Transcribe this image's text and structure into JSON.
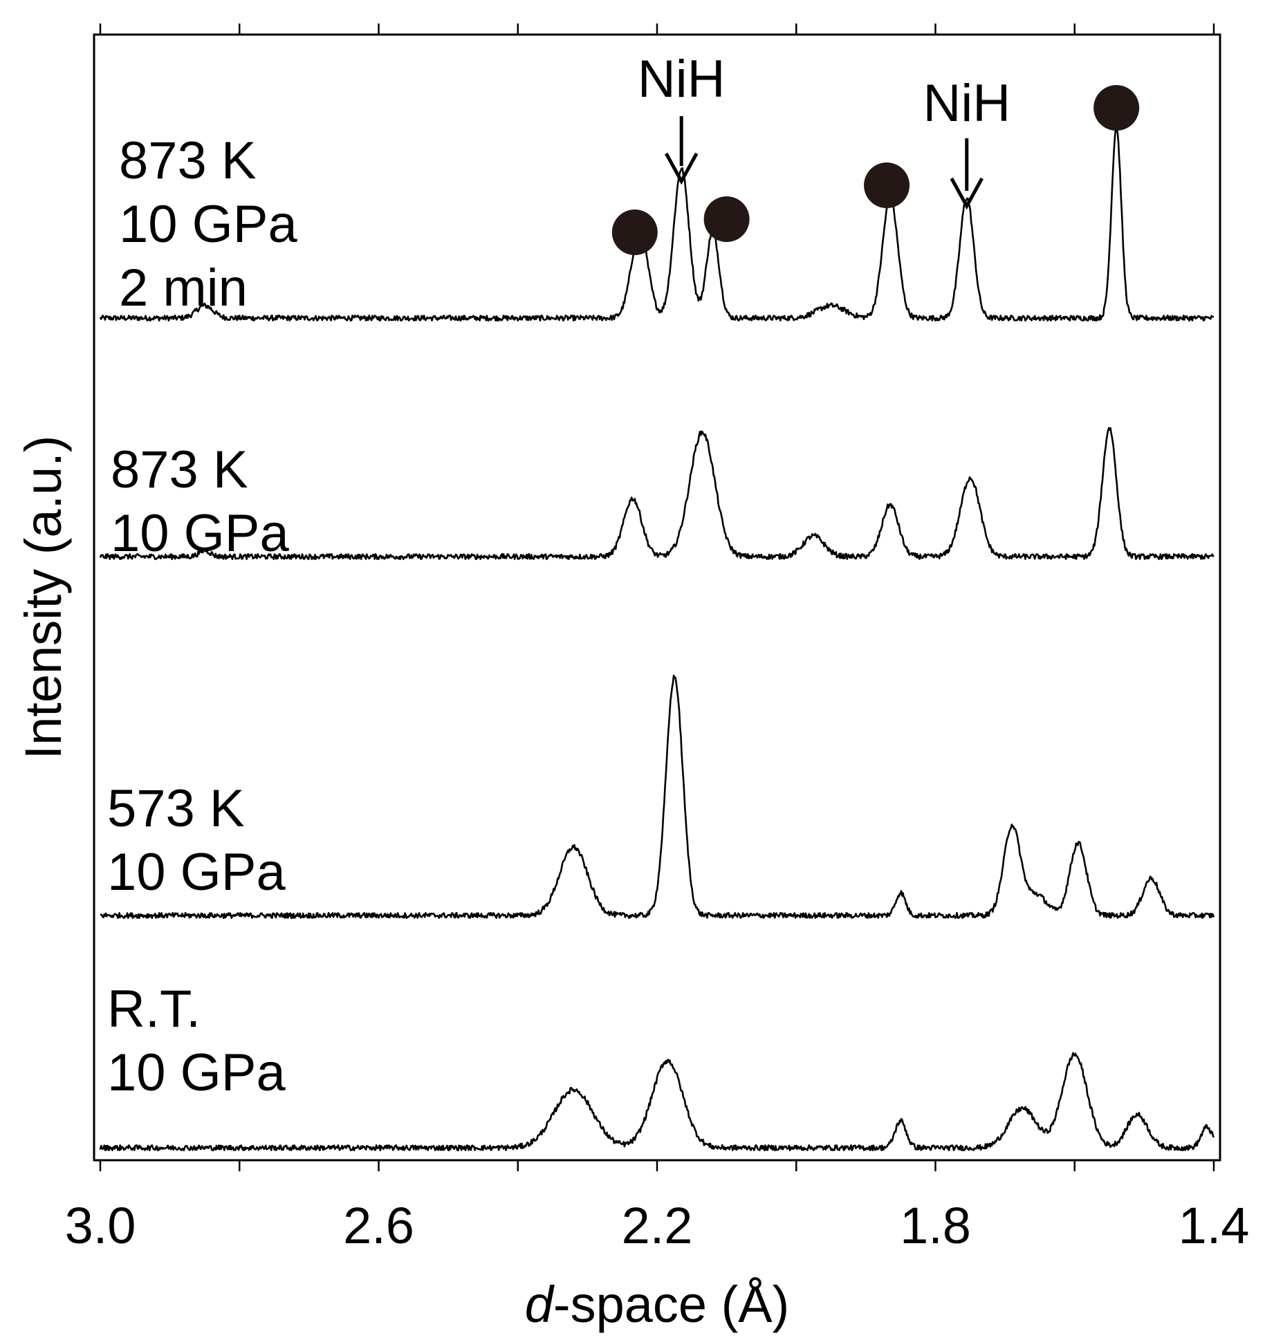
{
  "chart_data": {
    "type": "line",
    "title": "",
    "xlabel_italic": "d",
    "xlabel_rest": "-space (Å)",
    "ylabel": "Intensity (a.u.)",
    "xlim": [
      3.0,
      1.4
    ],
    "x_reversed": true,
    "xticks": [
      3.0,
      2.6,
      2.2,
      1.8,
      1.4
    ],
    "xtick_labels": [
      "3.0",
      "2.6",
      "2.2",
      "1.8",
      "1.4"
    ],
    "minor_xticks": [
      3.0,
      2.8,
      2.6,
      2.4,
      2.2,
      2.0,
      1.8,
      1.6,
      1.4
    ],
    "yticks_shown": false,
    "grid": false,
    "line_color": "#000000",
    "marker_color": "#231815",
    "series": [
      {
        "name_lines": [
          "873 K",
          "10 GPa",
          "2 min"
        ],
        "baseline": 4.0,
        "peaks": [
          {
            "d": 2.85,
            "h": 0.06,
            "w": 0.012
          },
          {
            "d": 2.225,
            "h": 0.42,
            "w": 0.012
          },
          {
            "d": 2.165,
            "h": 0.72,
            "w": 0.011
          },
          {
            "d": 2.12,
            "h": 0.42,
            "w": 0.009
          },
          {
            "d": 1.95,
            "h": 0.06,
            "w": 0.02
          },
          {
            "d": 1.865,
            "h": 0.58,
            "w": 0.011
          },
          {
            "d": 1.755,
            "h": 0.58,
            "w": 0.01
          },
          {
            "d": 1.54,
            "h": 0.92,
            "w": 0.007
          }
        ]
      },
      {
        "name_lines": [
          "873 K",
          "10 GPa"
        ],
        "baseline": 2.85,
        "peaks": [
          {
            "d": 2.85,
            "h": 0.03,
            "w": 0.008
          },
          {
            "d": 2.235,
            "h": 0.28,
            "w": 0.013
          },
          {
            "d": 2.135,
            "h": 0.6,
            "w": 0.018
          },
          {
            "d": 1.975,
            "h": 0.1,
            "w": 0.015
          },
          {
            "d": 1.865,
            "h": 0.25,
            "w": 0.012
          },
          {
            "d": 1.75,
            "h": 0.38,
            "w": 0.014
          },
          {
            "d": 1.55,
            "h": 0.62,
            "w": 0.01
          }
        ]
      },
      {
        "name_lines": [
          "573 K",
          "10 GPa"
        ],
        "baseline": 1.12,
        "peaks": [
          {
            "d": 2.32,
            "h": 0.33,
            "w": 0.02
          },
          {
            "d": 2.175,
            "h": 1.15,
            "w": 0.012
          },
          {
            "d": 1.85,
            "h": 0.11,
            "w": 0.007
          },
          {
            "d": 1.69,
            "h": 0.43,
            "w": 0.012
          },
          {
            "d": 1.655,
            "h": 0.1,
            "w": 0.015
          },
          {
            "d": 1.595,
            "h": 0.35,
            "w": 0.012
          },
          {
            "d": 1.49,
            "h": 0.18,
            "w": 0.012
          }
        ]
      },
      {
        "name_lines": [
          "R.T.",
          "10 GPa"
        ],
        "baseline": 0.0,
        "peaks": [
          {
            "d": 2.32,
            "h": 0.28,
            "w": 0.028
          },
          {
            "d": 2.185,
            "h": 0.42,
            "w": 0.022
          },
          {
            "d": 1.85,
            "h": 0.13,
            "w": 0.008
          },
          {
            "d": 1.675,
            "h": 0.19,
            "w": 0.02
          },
          {
            "d": 1.6,
            "h": 0.45,
            "w": 0.018
          },
          {
            "d": 1.51,
            "h": 0.16,
            "w": 0.015
          },
          {
            "d": 1.41,
            "h": 0.1,
            "w": 0.008
          }
        ]
      }
    ],
    "annotations": {
      "arrows": [
        {
          "label": "NiH",
          "d": 2.165
        },
        {
          "label": "NiH",
          "d": 1.755
        }
      ],
      "marker_d": [
        2.232,
        2.1,
        1.87,
        1.54
      ]
    }
  }
}
